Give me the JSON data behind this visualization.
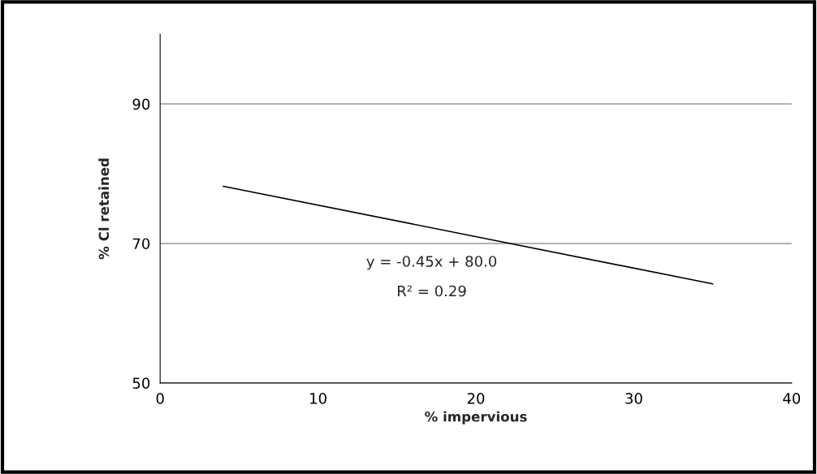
{
  "chart_data": {
    "type": "line",
    "xlabel": "% impervious",
    "ylabel": "% Cl retained",
    "x": [
      4,
      35
    ],
    "series": [
      {
        "color": "#000000",
        "values": [
          78.2,
          64.2
        ]
      }
    ],
    "xlim": [
      0,
      40
    ],
    "xticks": [
      0,
      10,
      20,
      30,
      40
    ],
    "ylim": [
      50,
      100
    ],
    "yticks": [
      50,
      70,
      90
    ],
    "grid": "y",
    "legend": false,
    "marker": "none",
    "line_style": "solid",
    "annotations": [
      "y = -0.45x + 80.0",
      "R² = 0.29"
    ]
  }
}
